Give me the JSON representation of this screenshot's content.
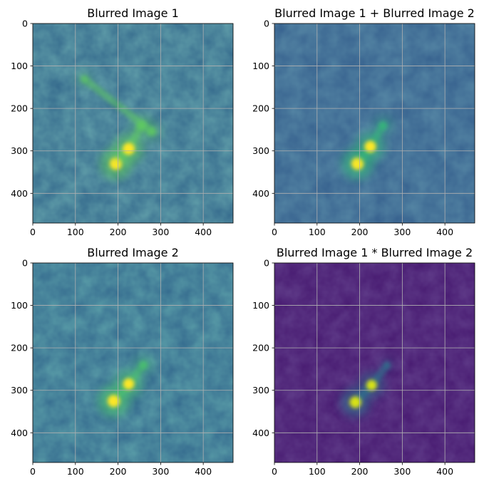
{
  "figure": {
    "panels": [
      {
        "title": "Blurred Image 1",
        "variant": "img1"
      },
      {
        "title": "Blurred Image 1 + Blurred Image 2",
        "variant": "sum"
      },
      {
        "title": "Blurred Image 2",
        "variant": "img2"
      },
      {
        "title": "Blurred Image 1 * Blurred Image 2",
        "variant": "prod"
      }
    ]
  },
  "chart_data": [
    {
      "type": "heatmap",
      "title": "Blurred Image 1",
      "xlabel": "",
      "ylabel": "",
      "x_ticks": [
        0,
        100,
        200,
        300,
        400
      ],
      "y_ticks": [
        0,
        100,
        200,
        300,
        400
      ],
      "xlim": [
        0,
        470
      ],
      "ylim": [
        470,
        0
      ],
      "grid": true,
      "colormap": "viridis",
      "features": [
        {
          "kind": "bright-blob",
          "x": 195,
          "y": 330,
          "intensity": 1.0
        },
        {
          "kind": "bright-blob",
          "x": 225,
          "y": 295,
          "intensity": 0.95
        },
        {
          "kind": "bright-blob",
          "x": 255,
          "y": 240,
          "intensity": 0.55
        },
        {
          "kind": "bright-blob",
          "x": 280,
          "y": 255,
          "intensity": 0.45
        },
        {
          "kind": "bright-blob",
          "x": 120,
          "y": 130,
          "intensity": 0.3
        }
      ]
    },
    {
      "type": "heatmap",
      "title": "Blurred Image 1 + Blurred Image 2",
      "xlabel": "",
      "ylabel": "",
      "x_ticks": [
        0,
        100,
        200,
        300,
        400
      ],
      "y_ticks": [
        0,
        100,
        200,
        300,
        400
      ],
      "xlim": [
        0,
        470
      ],
      "ylim": [
        470,
        0
      ],
      "grid": true,
      "colormap": "viridis",
      "features": [
        {
          "kind": "bright-blob",
          "x": 195,
          "y": 330,
          "intensity": 1.0
        },
        {
          "kind": "bright-blob",
          "x": 225,
          "y": 290,
          "intensity": 0.9
        },
        {
          "kind": "bright-blob",
          "x": 255,
          "y": 240,
          "intensity": 0.45
        }
      ]
    },
    {
      "type": "heatmap",
      "title": "Blurred Image 2",
      "xlabel": "",
      "ylabel": "",
      "x_ticks": [
        0,
        100,
        200,
        300,
        400
      ],
      "y_ticks": [
        0,
        100,
        200,
        300,
        400
      ],
      "xlim": [
        0,
        470
      ],
      "ylim": [
        470,
        0
      ],
      "grid": true,
      "colormap": "viridis",
      "features": [
        {
          "kind": "bright-blob",
          "x": 190,
          "y": 325,
          "intensity": 1.0
        },
        {
          "kind": "bright-blob",
          "x": 225,
          "y": 285,
          "intensity": 0.85
        },
        {
          "kind": "bright-blob",
          "x": 260,
          "y": 240,
          "intensity": 0.45
        }
      ]
    },
    {
      "type": "heatmap",
      "title": "Blurred Image 1 * Blurred Image 2",
      "xlabel": "",
      "ylabel": "",
      "x_ticks": [
        0,
        100,
        200,
        300,
        400
      ],
      "y_ticks": [
        0,
        100,
        200,
        300,
        400
      ],
      "xlim": [
        0,
        470
      ],
      "ylim": [
        470,
        0
      ],
      "grid": true,
      "colormap": "viridis",
      "features": [
        {
          "kind": "bright-blob",
          "x": 190,
          "y": 328,
          "intensity": 0.9
        },
        {
          "kind": "bright-blob",
          "x": 228,
          "y": 288,
          "intensity": 0.75
        },
        {
          "kind": "bright-blob",
          "x": 265,
          "y": 240,
          "intensity": 0.25
        }
      ]
    }
  ]
}
